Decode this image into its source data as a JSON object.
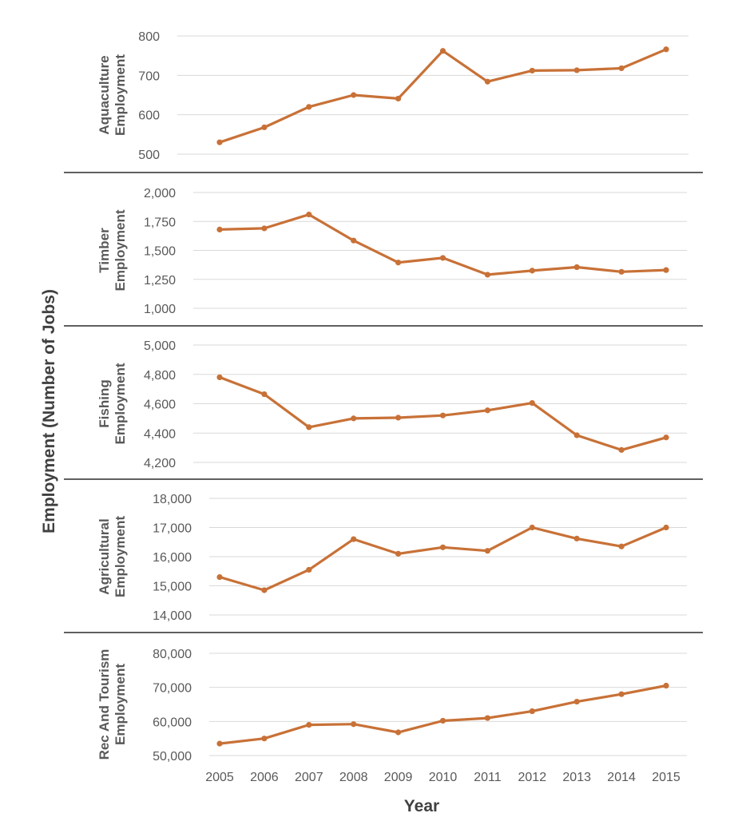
{
  "chart_data": {
    "type": "line",
    "ylabel": "Employment (Number of Jobs)",
    "xlabel": "Year",
    "x": [
      "2005",
      "2006",
      "2007",
      "2008",
      "2009",
      "2010",
      "2011",
      "2012",
      "2013",
      "2014",
      "2015"
    ],
    "line_color": "#c87137",
    "grid": true,
    "panels": [
      {
        "label_lines": [
          "Aquaculture",
          "Employment"
        ],
        "ylim": [
          500,
          800
        ],
        "ticks": [
          500,
          600,
          700,
          800
        ],
        "tick_labels": [
          "500",
          "600",
          "700",
          "800"
        ],
        "values": [
          530,
          568,
          620,
          650,
          641,
          762,
          684,
          712,
          713,
          718,
          766
        ]
      },
      {
        "label_lines": [
          "Timber",
          "Employment"
        ],
        "ylim": [
          1000,
          2000
        ],
        "ticks": [
          1000,
          1250,
          1500,
          1750,
          2000
        ],
        "tick_labels": [
          "1,000",
          "1,250",
          "1,500",
          "1,750",
          "2,000"
        ],
        "values": [
          1680,
          1690,
          1810,
          1585,
          1395,
          1435,
          1290,
          1325,
          1355,
          1315,
          1330
        ]
      },
      {
        "label_lines": [
          "Fishing",
          "Employment"
        ],
        "ylim": [
          4200,
          5000
        ],
        "ticks": [
          4200,
          4400,
          4600,
          4800,
          5000
        ],
        "tick_labels": [
          "4,200",
          "4,400",
          "4,600",
          "4,800",
          "5,000"
        ],
        "values": [
          4780,
          4665,
          4440,
          4500,
          4505,
          4520,
          4555,
          4605,
          4385,
          4285,
          4370
        ]
      },
      {
        "label_lines": [
          "Agricultural",
          "Employment"
        ],
        "ylim": [
          14000,
          18000
        ],
        "ticks": [
          14000,
          15000,
          16000,
          17000,
          18000
        ],
        "tick_labels": [
          "14,000",
          "15,000",
          "16,000",
          "17,000",
          "18,000"
        ],
        "values": [
          15300,
          14850,
          15550,
          16600,
          16100,
          16320,
          16200,
          17000,
          16620,
          16350,
          17000
        ]
      },
      {
        "label_lines": [
          "Rec And Tourism",
          "Employment"
        ],
        "ylim": [
          50000,
          80000
        ],
        "ticks": [
          50000,
          60000,
          70000,
          80000
        ],
        "tick_labels": [
          "50,000",
          "60,000",
          "70,000",
          "80,000"
        ],
        "values": [
          53500,
          55000,
          59000,
          59200,
          56800,
          60200,
          61000,
          63000,
          65800,
          68000,
          70500
        ]
      }
    ]
  }
}
